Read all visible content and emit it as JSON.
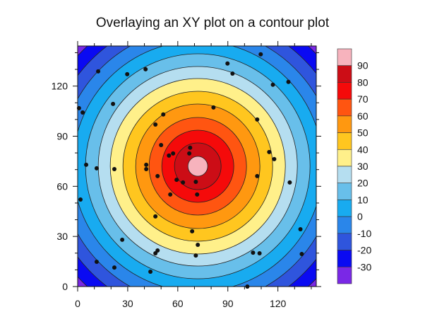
{
  "chart_data": {
    "type": "contour",
    "title": "Overlaying an XY plot on a contour plot",
    "xlabel": "",
    "ylabel": "",
    "xlim": [
      0,
      143
    ],
    "ylim": [
      0,
      144
    ],
    "x_ticks": [
      0,
      30,
      60,
      90,
      120
    ],
    "y_ticks": [
      0,
      30,
      60,
      90,
      120
    ],
    "grid": false,
    "contour": {
      "center": [
        72,
        72
      ],
      "shape": "radial, decreasing from center",
      "levels": [
        -30,
        -20,
        -10,
        0,
        10,
        20,
        30,
        40,
        50,
        60,
        70,
        80,
        90
      ],
      "level_radius_px": {
        "90": 14,
        "80": 33,
        "70": 51,
        "60": 69,
        "50": 88,
        "40": 106,
        "30": 124,
        "20": 141,
        "10": 159,
        "0": 177,
        "-10": 195,
        "-20": 213,
        "-30": 231
      }
    },
    "colorbar": {
      "labels": [
        "90",
        "80",
        "70",
        "60",
        "50",
        "40",
        "30",
        "20",
        "10",
        "0",
        "-10",
        "-20",
        "-30"
      ],
      "colors_top_to_bottom": [
        "#f7b3bd",
        "#cc0d16",
        "#f50a0a",
        "#ff5511",
        "#ff9810",
        "#ffc61f",
        "#fff08a",
        "#b5def0",
        "#68bfea",
        "#18abf0",
        "#2a86ea",
        "#2f55dd",
        "#0a0af2",
        "#7a28e6"
      ],
      "position": "right"
    },
    "scatter": {
      "marker": "filled circle",
      "color": "#111111",
      "points": [
        [
          12.3,
          128.8
        ],
        [
          29.7,
          127.1
        ],
        [
          40.7,
          130.1
        ],
        [
          109.7,
          139.0
        ],
        [
          89.8,
          133.5
        ],
        [
          92.8,
          127.5
        ],
        [
          117.0,
          120.8
        ],
        [
          126.3,
          122.5
        ],
        [
          21.2,
          109.3
        ],
        [
          0.8,
          106.8
        ],
        [
          3.0,
          104.2
        ],
        [
          81.4,
          107.2
        ],
        [
          46.6,
          97.0
        ],
        [
          107.6,
          100.0
        ],
        [
          51.3,
          103.0
        ],
        [
          114.8,
          80.5
        ],
        [
          117.8,
          76.3
        ],
        [
          107.6,
          66.1
        ],
        [
          50.0,
          84.7
        ],
        [
          57.2,
          79.7
        ],
        [
          66.9,
          79.7
        ],
        [
          67.4,
          83.1
        ],
        [
          5.1,
          72.9
        ],
        [
          11.4,
          70.8
        ],
        [
          22.0,
          70.3
        ],
        [
          41.1,
          70.3
        ],
        [
          41.1,
          72.9
        ],
        [
          47.9,
          66.1
        ],
        [
          54.7,
          78.4
        ],
        [
          59.3,
          63.9
        ],
        [
          63.1,
          62.3
        ],
        [
          70.8,
          62.7
        ],
        [
          71.6,
          55.1
        ],
        [
          55.5,
          55.1
        ],
        [
          46.6,
          42.0
        ],
        [
          127.1,
          62.3
        ],
        [
          26.7,
          28.0
        ],
        [
          1.7,
          52.1
        ],
        [
          68.6,
          33.1
        ],
        [
          72.0,
          25.0
        ],
        [
          46.6,
          19.9
        ],
        [
          47.9,
          21.6
        ],
        [
          70.8,
          18.6
        ],
        [
          11.4,
          14.8
        ],
        [
          22.0,
          11.4
        ],
        [
          43.6,
          8.9
        ],
        [
          109.0,
          19.9
        ],
        [
          105.1,
          20.3
        ],
        [
          133.5,
          34.3
        ],
        [
          134.3,
          19.5
        ],
        [
          101.7,
          0.0
        ]
      ]
    }
  }
}
